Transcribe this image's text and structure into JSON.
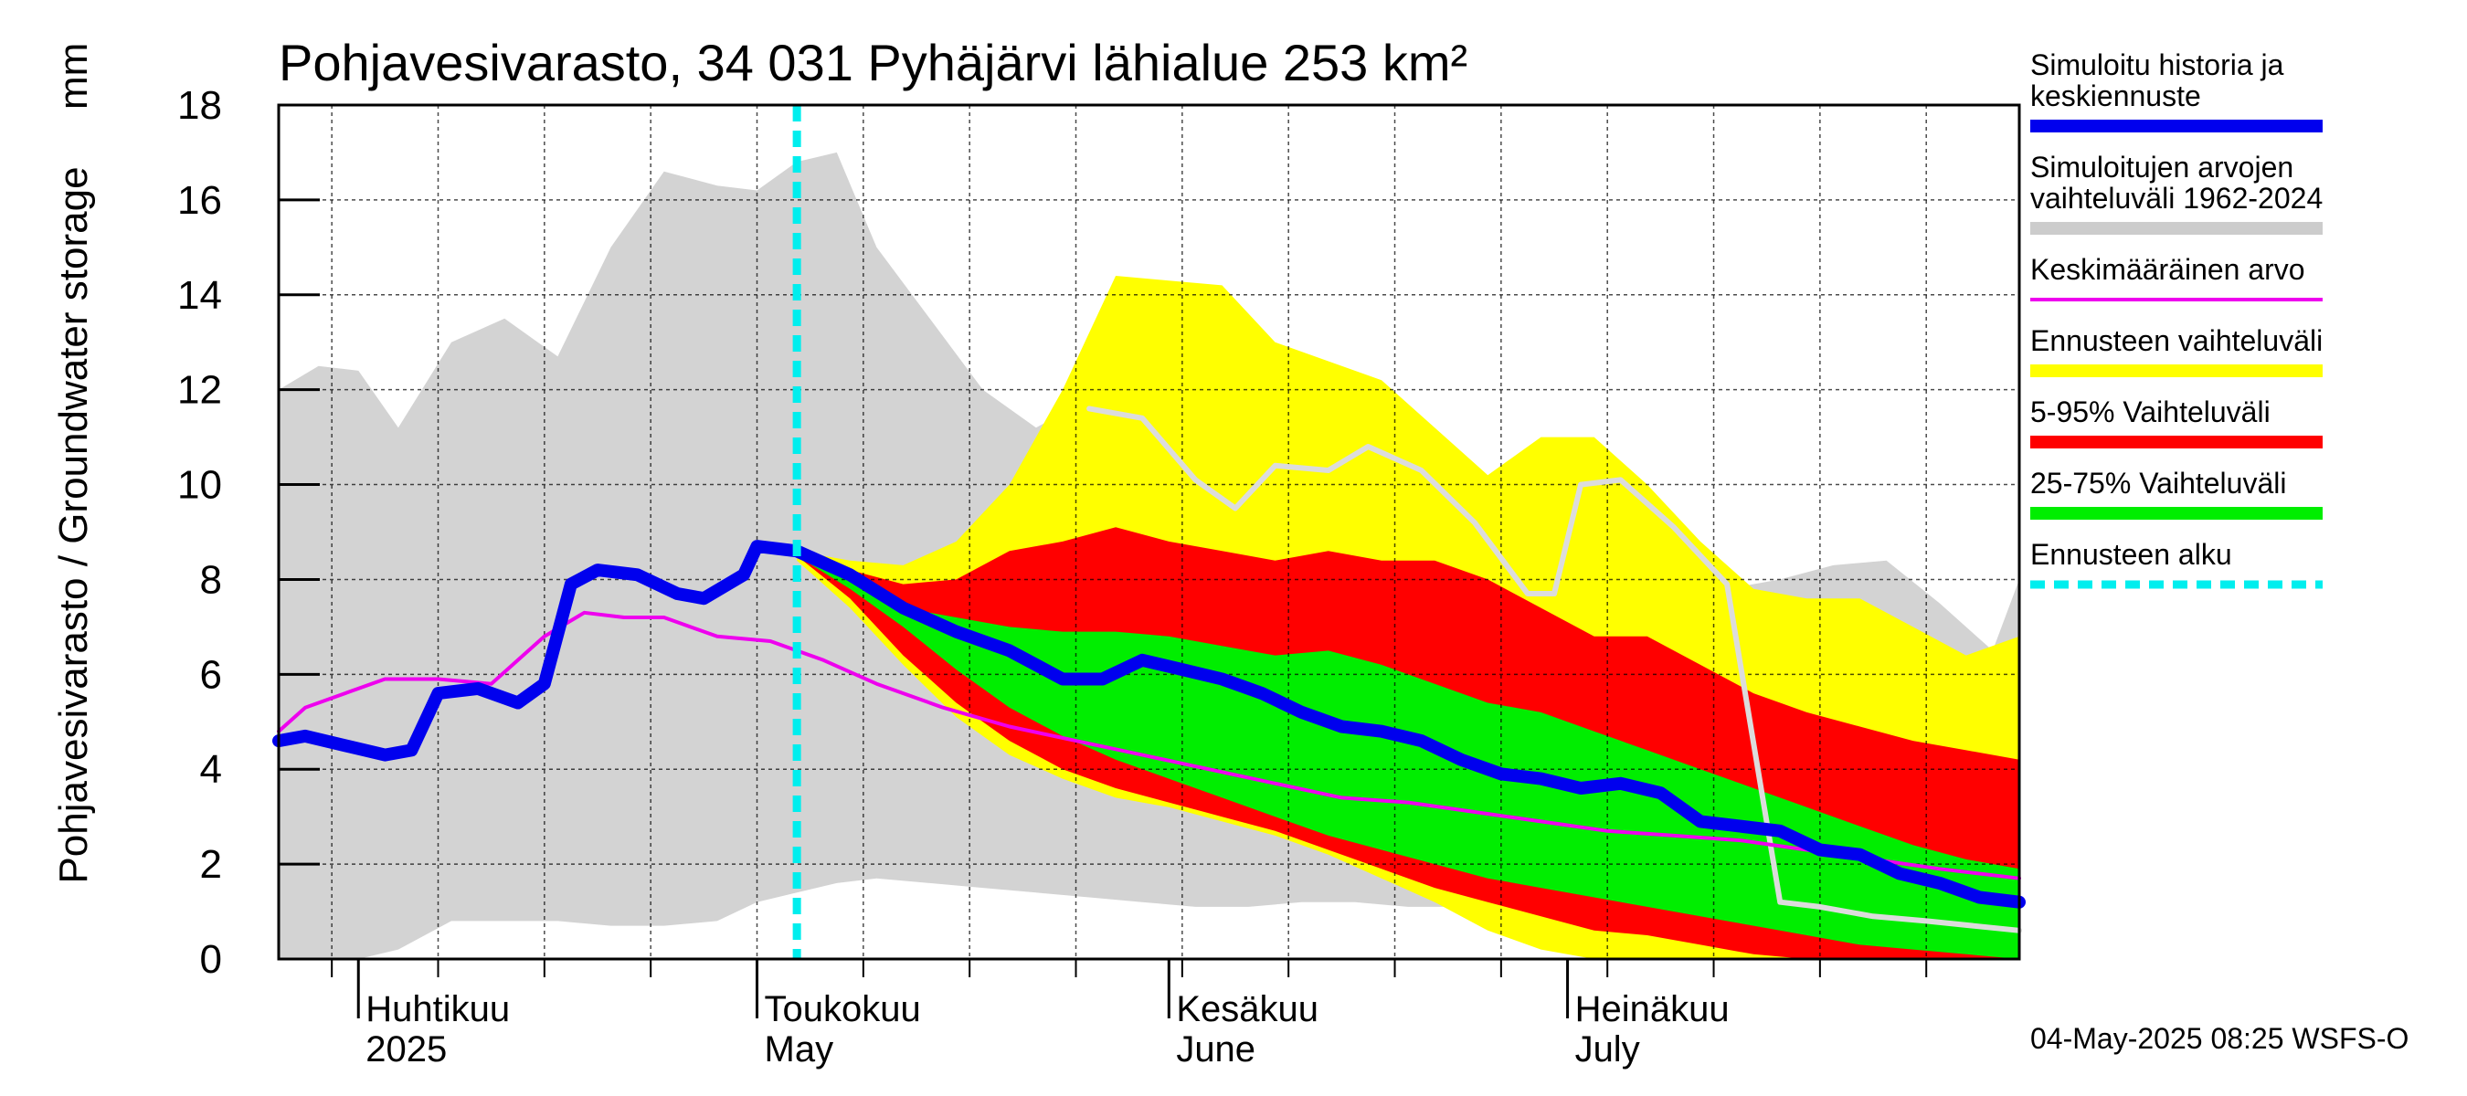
{
  "chart_data": {
    "type": "area",
    "title": "Pohjavesivarasto, 34 031 Pyhäjärvi lähialue 253 km²",
    "ylabel": "Pohjavesivarasto / Groundwater storage",
    "yunit": "mm",
    "ylim": [
      0,
      18
    ],
    "yticks": [
      0,
      2,
      4,
      6,
      8,
      10,
      12,
      14,
      16,
      18
    ],
    "xlim": [
      "2025-03-26",
      "2025-08-04"
    ],
    "forecast_start": "2025-05-04",
    "month_labels": [
      {
        "date": "2025-04-01",
        "line1": "Huhtikuu",
        "line2": "2025"
      },
      {
        "date": "2025-05-01",
        "line1": "Toukokuu",
        "line2": "May"
      },
      {
        "date": "2025-06-01",
        "line1": "Kesäkuu",
        "line2": "June"
      },
      {
        "date": "2025-07-01",
        "line1": "Heinäkuu",
        "line2": "July"
      }
    ],
    "grid": true,
    "legend_position": "right",
    "legend": [
      {
        "key": "history",
        "label_lines": [
          "Simuloitu historia ja",
          "keskiennuste"
        ],
        "color": "#0000ee",
        "style": "thick"
      },
      {
        "key": "range_hist",
        "label_lines": [
          "Simuloitujen arvojen",
          "vaihteluväli 1962-2024"
        ],
        "color": "#cccccc",
        "style": "thick"
      },
      {
        "key": "mean",
        "label_lines": [
          "Keskimääräinen arvo"
        ],
        "color": "#ee00ee",
        "style": "thin"
      },
      {
        "key": "forecast_range",
        "label_lines": [
          "Ennusteen vaihteluväli"
        ],
        "color": "#ffff00",
        "style": "thick"
      },
      {
        "key": "p5_95",
        "label_lines": [
          "5-95% Vaihteluväli"
        ],
        "color": "#ff0000",
        "style": "thick"
      },
      {
        "key": "p25_75",
        "label_lines": [
          "25-75% Vaihteluväli"
        ],
        "color": "#00ee00",
        "style": "thick"
      },
      {
        "key": "forecast_start",
        "label_lines": [
          "Ennusteen alku"
        ],
        "color": "#00eeee",
        "style": "dashed"
      }
    ],
    "series": {
      "hist_range": {
        "x": [
          "2025-03-26",
          "2025-03-29",
          "2025-04-01",
          "2025-04-04",
          "2025-04-08",
          "2025-04-12",
          "2025-04-16",
          "2025-04-20",
          "2025-04-24",
          "2025-04-28",
          "2025-05-01",
          "2025-05-04",
          "2025-05-07",
          "2025-05-10",
          "2025-05-14",
          "2025-05-18",
          "2025-05-22",
          "2025-05-26",
          "2025-05-30",
          "2025-06-03",
          "2025-06-07",
          "2025-06-11",
          "2025-06-15",
          "2025-06-19",
          "2025-06-23",
          "2025-06-27",
          "2025-07-01",
          "2025-07-05",
          "2025-07-09",
          "2025-07-13",
          "2025-07-17",
          "2025-07-21",
          "2025-07-25",
          "2025-07-29",
          "2025-08-02",
          "2025-08-04"
        ],
        "upper": [
          12.0,
          12.5,
          12.4,
          11.2,
          13.0,
          13.5,
          12.7,
          15.0,
          16.6,
          16.3,
          16.2,
          16.8,
          17.0,
          15.0,
          13.5,
          12.0,
          11.2,
          11.8,
          11.4,
          11.0,
          10.8,
          10.5,
          10.4,
          10.2,
          10.2,
          10.1,
          10.0,
          9.5,
          8.5,
          7.8,
          8.0,
          8.3,
          8.4,
          7.5,
          6.5,
          8.0
        ],
        "lower": [
          0.0,
          0.0,
          0.0,
          0.2,
          0.8,
          0.8,
          0.8,
          0.7,
          0.7,
          0.8,
          1.2,
          1.4,
          1.6,
          1.7,
          1.6,
          1.5,
          1.4,
          1.3,
          1.2,
          1.1,
          1.1,
          1.2,
          1.2,
          1.1,
          1.1,
          1.0,
          1.0,
          0.9,
          0.8,
          0.6,
          0.5,
          0.3,
          0.1,
          0.0,
          0.0,
          0.0
        ]
      },
      "forecast_range": {
        "x": [
          "2025-05-04",
          "2025-05-08",
          "2025-05-12",
          "2025-05-16",
          "2025-05-20",
          "2025-05-24",
          "2025-05-28",
          "2025-06-01",
          "2025-06-05",
          "2025-06-09",
          "2025-06-13",
          "2025-06-17",
          "2025-06-21",
          "2025-06-25",
          "2025-06-29",
          "2025-07-03",
          "2025-07-07",
          "2025-07-11",
          "2025-07-15",
          "2025-07-19",
          "2025-07-23",
          "2025-07-27",
          "2025-07-31",
          "2025-08-04"
        ],
        "upper": [
          8.6,
          8.4,
          8.3,
          8.8,
          10.0,
          12.0,
          14.4,
          14.3,
          14.2,
          13.0,
          12.6,
          12.2,
          11.2,
          10.2,
          11.0,
          11.0,
          10.0,
          8.8,
          7.8,
          7.6,
          7.6,
          7.0,
          6.4,
          6.8
        ],
        "lower": [
          8.4,
          7.4,
          6.2,
          5.1,
          4.3,
          3.8,
          3.4,
          3.2,
          2.9,
          2.6,
          2.2,
          1.7,
          1.2,
          0.6,
          0.2,
          0.0,
          0.0,
          0.0,
          0.0,
          0.0,
          0.0,
          0.0,
          0.0,
          0.0
        ]
      },
      "p5_95": {
        "x": [
          "2025-05-04",
          "2025-05-08",
          "2025-05-12",
          "2025-05-16",
          "2025-05-20",
          "2025-05-24",
          "2025-05-28",
          "2025-06-01",
          "2025-06-05",
          "2025-06-09",
          "2025-06-13",
          "2025-06-17",
          "2025-06-21",
          "2025-06-25",
          "2025-06-29",
          "2025-07-03",
          "2025-07-07",
          "2025-07-11",
          "2025-07-15",
          "2025-07-19",
          "2025-07-23",
          "2025-07-27",
          "2025-07-31",
          "2025-08-04"
        ],
        "upper": [
          8.6,
          8.2,
          7.9,
          8.0,
          8.6,
          8.8,
          9.1,
          8.8,
          8.6,
          8.4,
          8.6,
          8.4,
          8.4,
          8.0,
          7.4,
          6.8,
          6.8,
          6.2,
          5.6,
          5.2,
          4.9,
          4.6,
          4.4,
          4.2
        ],
        "lower": [
          8.5,
          7.6,
          6.4,
          5.4,
          4.6,
          4.0,
          3.6,
          3.3,
          3.0,
          2.7,
          2.3,
          1.9,
          1.5,
          1.2,
          0.9,
          0.6,
          0.5,
          0.3,
          0.1,
          0.0,
          0.0,
          0.0,
          0.0,
          0.0
        ]
      },
      "p25_75": {
        "x": [
          "2025-05-04",
          "2025-05-08",
          "2025-05-12",
          "2025-05-16",
          "2025-05-20",
          "2025-05-24",
          "2025-05-28",
          "2025-06-01",
          "2025-06-05",
          "2025-06-09",
          "2025-06-13",
          "2025-06-17",
          "2025-06-21",
          "2025-06-25",
          "2025-06-29",
          "2025-07-03",
          "2025-07-07",
          "2025-07-11",
          "2025-07-15",
          "2025-07-19",
          "2025-07-23",
          "2025-07-27",
          "2025-07-31",
          "2025-08-04"
        ],
        "upper": [
          8.6,
          8.0,
          7.4,
          7.2,
          7.0,
          6.9,
          6.9,
          6.8,
          6.6,
          6.4,
          6.5,
          6.2,
          5.8,
          5.4,
          5.2,
          4.8,
          4.4,
          4.0,
          3.6,
          3.2,
          2.8,
          2.4,
          2.1,
          1.9
        ],
        "lower": [
          8.5,
          7.8,
          7.0,
          6.1,
          5.3,
          4.7,
          4.2,
          3.8,
          3.4,
          3.0,
          2.6,
          2.3,
          2.0,
          1.7,
          1.5,
          1.3,
          1.1,
          0.9,
          0.7,
          0.5,
          0.3,
          0.2,
          0.1,
          0.0
        ]
      },
      "mean": {
        "x": [
          "2025-03-26",
          "2025-03-28",
          "2025-03-31",
          "2025-04-03",
          "2025-04-07",
          "2025-04-11",
          "2025-04-15",
          "2025-04-18",
          "2025-04-21",
          "2025-04-24",
          "2025-04-28",
          "2025-05-02",
          "2025-05-06",
          "2025-05-10",
          "2025-05-15",
          "2025-05-20",
          "2025-05-25",
          "2025-05-30",
          "2025-06-04",
          "2025-06-09",
          "2025-06-14",
          "2025-06-19",
          "2025-06-24",
          "2025-06-29",
          "2025-07-04",
          "2025-07-09",
          "2025-07-14",
          "2025-07-19",
          "2025-07-24",
          "2025-07-29",
          "2025-08-04"
        ],
        "y": [
          4.8,
          5.3,
          5.6,
          5.9,
          5.9,
          5.8,
          6.8,
          7.3,
          7.2,
          7.2,
          6.8,
          6.7,
          6.3,
          5.8,
          5.3,
          4.9,
          4.6,
          4.3,
          4.0,
          3.7,
          3.4,
          3.3,
          3.1,
          2.9,
          2.7,
          2.6,
          2.5,
          2.3,
          2.1,
          1.9,
          1.7
        ]
      },
      "history_mean_forecast": {
        "x": [
          "2025-03-26",
          "2025-03-28",
          "2025-03-31",
          "2025-04-03",
          "2025-04-05",
          "2025-04-07",
          "2025-04-10",
          "2025-04-13",
          "2025-04-15",
          "2025-04-17",
          "2025-04-19",
          "2025-04-22",
          "2025-04-25",
          "2025-04-27",
          "2025-04-30",
          "2025-05-01",
          "2025-05-04",
          "2025-05-08",
          "2025-05-12",
          "2025-05-16",
          "2025-05-20",
          "2025-05-24",
          "2025-05-27",
          "2025-05-30",
          "2025-06-02",
          "2025-06-05",
          "2025-06-08",
          "2025-06-11",
          "2025-06-14",
          "2025-06-17",
          "2025-06-20",
          "2025-06-23",
          "2025-06-26",
          "2025-06-29",
          "2025-07-02",
          "2025-07-05",
          "2025-07-08",
          "2025-07-11",
          "2025-07-14",
          "2025-07-17",
          "2025-07-20",
          "2025-07-23",
          "2025-07-26",
          "2025-07-29",
          "2025-08-01",
          "2025-08-04"
        ],
        "y": [
          4.6,
          4.7,
          4.5,
          4.3,
          4.4,
          5.6,
          5.7,
          5.4,
          5.8,
          7.9,
          8.2,
          8.1,
          7.7,
          7.6,
          8.1,
          8.7,
          8.6,
          8.1,
          7.4,
          6.9,
          6.5,
          5.9,
          5.9,
          6.3,
          6.1,
          5.9,
          5.6,
          5.2,
          4.9,
          4.8,
          4.6,
          4.2,
          3.9,
          3.8,
          3.6,
          3.7,
          3.5,
          2.9,
          2.8,
          2.7,
          2.3,
          2.2,
          1.8,
          1.6,
          1.3,
          1.2
        ]
      },
      "gray_line": {
        "x": [
          "2025-05-26",
          "2025-05-30",
          "2025-06-03",
          "2025-06-06",
          "2025-06-09",
          "2025-06-13",
          "2025-06-16",
          "2025-06-20",
          "2025-06-24",
          "2025-06-28",
          "2025-06-30",
          "2025-07-02",
          "2025-07-05",
          "2025-07-09",
          "2025-07-13",
          "2025-07-17",
          "2025-07-20",
          "2025-07-24",
          "2025-07-28",
          "2025-08-04"
        ],
        "y": [
          11.6,
          11.4,
          10.1,
          9.5,
          10.4,
          10.3,
          10.8,
          10.3,
          9.2,
          7.7,
          7.7,
          10.0,
          10.1,
          9.1,
          7.9,
          1.2,
          1.1,
          0.9,
          0.8,
          0.6
        ]
      }
    }
  },
  "footer": {
    "timestamp": "04-May-2025 08:25 WSFS-O"
  }
}
